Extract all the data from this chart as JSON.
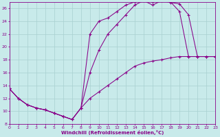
{
  "xlabel": "Windchill (Refroidissement éolien,°C)",
  "xlim": [
    0,
    23
  ],
  "ylim": [
    8,
    27
  ],
  "xticks": [
    0,
    1,
    2,
    3,
    4,
    5,
    6,
    7,
    8,
    9,
    10,
    11,
    12,
    13,
    14,
    15,
    16,
    17,
    18,
    19,
    20,
    21,
    22,
    23
  ],
  "yticks": [
    8,
    10,
    12,
    14,
    16,
    18,
    20,
    22,
    24,
    26
  ],
  "bg_color": "#c8eaea",
  "grid_color": "#a8d0d0",
  "line_color": "#880088",
  "line1_x": [
    0,
    1,
    2,
    3,
    4,
    5,
    6,
    7,
    8,
    9,
    10,
    11,
    12,
    13,
    14,
    15,
    16,
    17,
    18,
    19,
    20,
    21,
    22,
    23
  ],
  "line1_y": [
    13.5,
    12.0,
    11.0,
    10.5,
    10.2,
    9.7,
    9.2,
    8.7,
    10.5,
    12.0,
    13.0,
    14.0,
    15.0,
    16.0,
    17.0,
    17.5,
    17.8,
    18.0,
    18.3,
    18.5,
    18.5,
    18.5,
    18.5,
    18.5
  ],
  "line2_x": [
    0,
    1,
    2,
    3,
    4,
    5,
    6,
    7,
    8,
    9,
    10,
    11,
    12,
    13,
    14,
    15,
    16,
    17,
    18,
    19,
    20,
    21,
    22,
    23
  ],
  "line2_y": [
    13.5,
    12.0,
    11.0,
    10.5,
    10.2,
    9.7,
    9.2,
    8.7,
    10.5,
    22.0,
    24.0,
    24.5,
    25.5,
    26.5,
    27.0,
    27.3,
    27.0,
    27.2,
    27.0,
    25.5,
    18.5,
    18.5,
    18.5,
    18.5
  ],
  "line3_x": [
    0,
    1,
    2,
    3,
    4,
    5,
    6,
    7,
    8,
    9,
    10,
    11,
    12,
    13,
    14,
    15,
    16,
    17,
    18,
    19,
    20,
    21,
    22,
    23
  ],
  "line3_y": [
    13.5,
    12.0,
    11.0,
    10.5,
    10.2,
    9.7,
    9.2,
    8.7,
    10.5,
    16.0,
    19.5,
    22.0,
    23.5,
    25.0,
    26.5,
    27.2,
    26.5,
    27.2,
    26.9,
    26.7,
    25.0,
    18.5,
    18.5,
    18.5
  ]
}
